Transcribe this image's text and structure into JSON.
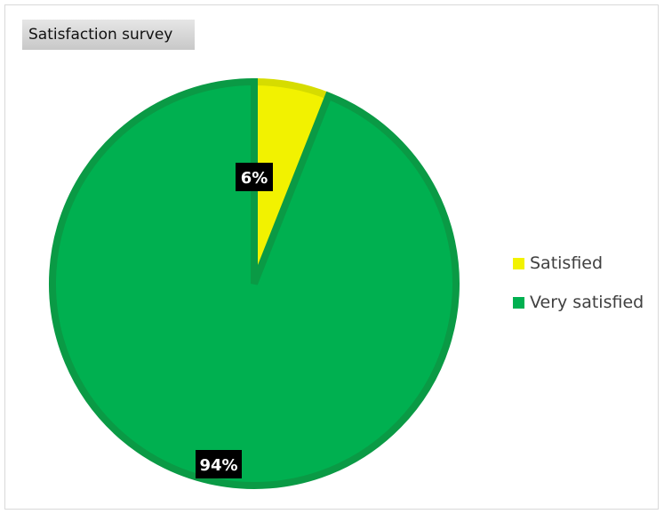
{
  "chart_data": {
    "type": "pie",
    "title": "Satisfaction survey",
    "start_angle_deg": 0,
    "direction": "clockwise",
    "slices": [
      {
        "name": "Satisfied",
        "value": 6,
        "label": "6%",
        "color": "#f2f200",
        "edge_color": "#d6dc00"
      },
      {
        "name": "Very satisfied",
        "value": 94,
        "label": "94%",
        "color": "#00b050",
        "edge_color": "#0a9a45"
      }
    ],
    "legend": {
      "position": "right",
      "entries": [
        "Satisfied",
        "Very satisfied"
      ]
    },
    "data_label_style": {
      "background": "#000000",
      "text_color": "#ffffff"
    }
  }
}
